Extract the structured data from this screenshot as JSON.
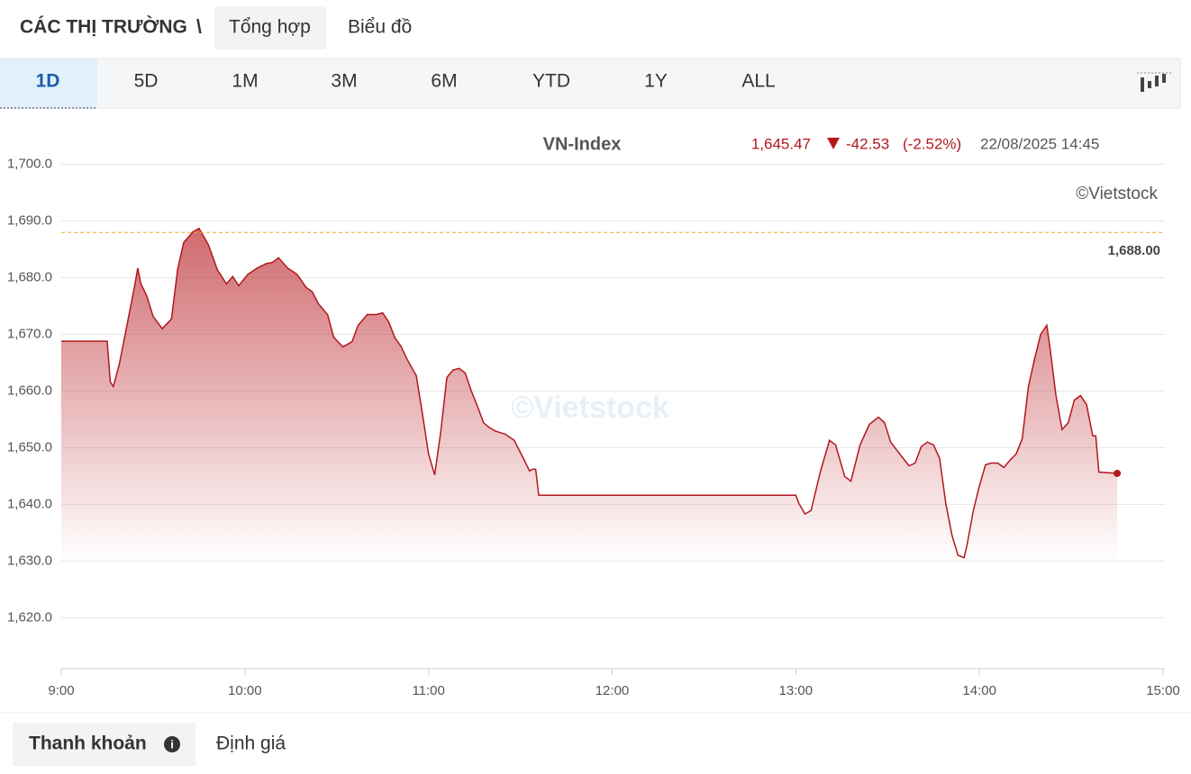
{
  "header": {
    "section": "CÁC THỊ TRƯỜNG",
    "separator": "\\",
    "tabs": [
      "Tổng hợp",
      "Biểu đồ"
    ]
  },
  "ranges": [
    "1D",
    "5D",
    "1M",
    "3M",
    "6M",
    "YTD",
    "1Y",
    "ALL"
  ],
  "bottom_tabs": [
    "Thanh khoản",
    "Định giá"
  ],
  "chart_data": {
    "type": "area",
    "title": "VN-Index",
    "price": "1,645.47",
    "change": "-42.53",
    "change_percent": "(-2.52%)",
    "timestamp": "22/08/2025 14:45",
    "watermark": "©Vietstock",
    "color": "#b3171d",
    "reference": {
      "value": 1688,
      "label": "1,688.00",
      "color": "#f5a623"
    },
    "x": [
      "9:00",
      "9:15",
      "9:16",
      "9:17",
      "9:19",
      "9:21",
      "9:24",
      "9:25",
      "9:26",
      "9:28",
      "9:30",
      "9:33",
      "9:36",
      "9:38",
      "9:40",
      "9:43",
      "9:45",
      "9:48",
      "9:51",
      "9:54",
      "9:56",
      "9:58",
      "10:01",
      "10:04",
      "10:07",
      "10:09",
      "10:11",
      "10:14",
      "10:17",
      "10:20",
      "10:22",
      "10:24",
      "10:27",
      "10:29",
      "10:32",
      "10:35",
      "10:37",
      "10:40",
      "10:43",
      "10:45",
      "10:47",
      "10:49",
      "10:51",
      "10:53",
      "10:56",
      "10:58",
      "11:00",
      "11:02",
      "11:04",
      "11:06",
      "11:08",
      "11:10",
      "11:12",
      "11:14",
      "11:16",
      "11:18",
      "11:20",
      "11:22",
      "11:25",
      "11:28",
      "11:31",
      "11:33",
      "11:34",
      "11:35",
      "11:36",
      "13:00",
      "13:01",
      "13:03",
      "13:05",
      "13:08",
      "13:11",
      "13:13",
      "13:16",
      "13:18",
      "13:21",
      "13:24",
      "13:27",
      "13:29",
      "13:31",
      "13:34",
      "13:37",
      "13:39",
      "13:41",
      "13:43",
      "13:45",
      "13:47",
      "13:49",
      "13:51",
      "13:53",
      "13:55",
      "13:56",
      "13:58",
      "14:00",
      "14:02",
      "14:04",
      "14:06",
      "14:08",
      "14:10",
      "14:12",
      "14:14",
      "14:16",
      "14:18",
      "14:20",
      "14:22",
      "14:23",
      "14:25",
      "14:27",
      "14:29",
      "14:31",
      "14:33",
      "14:35",
      "14:37",
      "14:38",
      "14:39",
      "14:45"
    ],
    "values": [
      1668.8,
      1668.8,
      1661.6,
      1660.8,
      1664.8,
      1670.3,
      1678.6,
      1681.7,
      1679,
      1676.7,
      1673.2,
      1671,
      1672.7,
      1681.4,
      1686.2,
      1688.1,
      1688.7,
      1685.9,
      1681.4,
      1678.9,
      1680.2,
      1678.6,
      1680.6,
      1681.7,
      1682.5,
      1682.7,
      1683.5,
      1681.7,
      1680.6,
      1678.3,
      1677.5,
      1675.4,
      1673.5,
      1669.5,
      1667.8,
      1668.7,
      1671.6,
      1673.5,
      1673.5,
      1673.8,
      1672.2,
      1669.4,
      1667.9,
      1665.6,
      1662.7,
      1656,
      1648.9,
      1645.2,
      1652.9,
      1662.4,
      1663.7,
      1664,
      1663.2,
      1660,
      1657.3,
      1654.4,
      1653.5,
      1652.9,
      1652.4,
      1651.3,
      1648.1,
      1645.9,
      1646.2,
      1646.2,
      1641.6,
      1641.6,
      1640.2,
      1638.3,
      1638.9,
      1645.7,
      1651.3,
      1650.5,
      1644.9,
      1644.1,
      1650.5,
      1654.1,
      1655.4,
      1654.4,
      1651,
      1648.9,
      1646.8,
      1647.3,
      1650.2,
      1651,
      1650.5,
      1648.1,
      1640.2,
      1634.6,
      1631,
      1630.6,
      1633,
      1638.9,
      1643.3,
      1647,
      1647.3,
      1647.3,
      1646.5,
      1647.8,
      1648.9,
      1651.6,
      1660.8,
      1665.6,
      1670,
      1671.6,
      1667.9,
      1659.2,
      1653.2,
      1654.4,
      1658.4,
      1659.2,
      1657.6,
      1652.1,
      1652.1,
      1645.7,
      1645.47
    ],
    "xlim": [
      "9:00",
      "15:00"
    ],
    "xticks": [
      "9:00",
      "10:00",
      "11:00",
      "12:00",
      "13:00",
      "14:00",
      "15:00"
    ],
    "ylim": [
      1611,
      1709
    ],
    "yticks": [
      {
        "value": 1620,
        "label": "1,620.0"
      },
      {
        "value": 1630,
        "label": "1,630.0"
      },
      {
        "value": 1640,
        "label": "1,640.0"
      },
      {
        "value": 1650,
        "label": "1,650.0"
      },
      {
        "value": 1660,
        "label": "1,660.0"
      },
      {
        "value": 1670,
        "label": "1,670.0"
      },
      {
        "value": 1680,
        "label": "1,680.0"
      },
      {
        "value": 1690,
        "label": "1,690.0"
      },
      {
        "value": 1700,
        "label": "1,700.0"
      }
    ],
    "grid": true
  }
}
